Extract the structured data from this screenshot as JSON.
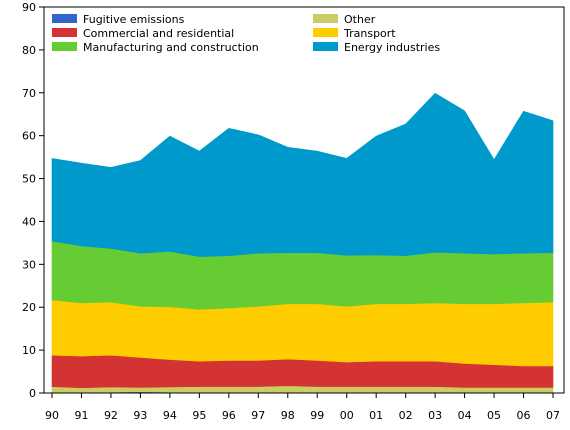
{
  "chart_data": {
    "type": "area",
    "stacked": true,
    "categories": [
      "90",
      "91",
      "92",
      "93",
      "94",
      "95",
      "96",
      "97",
      "98",
      "99",
      "00",
      "01",
      "02",
      "03",
      "04",
      "05",
      "06",
      "07"
    ],
    "ylim": [
      0,
      90
    ],
    "yticks": [
      0,
      10,
      20,
      30,
      40,
      50,
      60,
      70,
      80,
      90
    ],
    "grid": false,
    "legend_position": "top",
    "series": [
      {
        "name": "Fugitive emissions",
        "color": "#3366cc",
        "values": [
          0.2,
          0.2,
          0.2,
          0.3,
          0.2,
          0.2,
          0.2,
          0.2,
          0.2,
          0.2,
          0.2,
          0.2,
          0.2,
          0.2,
          0.2,
          0.2,
          0.2,
          0.2
        ]
      },
      {
        "name": "Other",
        "color": "#cccc66",
        "values": [
          1.3,
          1.0,
          1.2,
          1.0,
          1.2,
          1.3,
          1.3,
          1.3,
          1.5,
          1.3,
          1.3,
          1.3,
          1.3,
          1.3,
          1.1,
          1.1,
          1.1,
          1.1
        ]
      },
      {
        "name": "Commercial and residential",
        "color": "#d43333",
        "values": [
          7.3,
          7.4,
          7.4,
          7.0,
          6.4,
          5.9,
          6.1,
          6.1,
          6.2,
          6.1,
          5.7,
          5.9,
          5.9,
          5.9,
          5.6,
          5.3,
          5.0,
          5.0
        ]
      },
      {
        "name": "Transport",
        "color": "#ffcc00",
        "values": [
          12.9,
          12.4,
          12.4,
          11.9,
          12.3,
          12.1,
          12.2,
          12.6,
          12.9,
          13.2,
          13.0,
          13.4,
          13.4,
          13.6,
          13.9,
          14.2,
          14.7,
          14.9
        ]
      },
      {
        "name": "Manufacturing and construction",
        "color": "#66cc33",
        "values": [
          13.7,
          13.3,
          12.5,
          12.4,
          12.9,
          12.3,
          12.2,
          12.4,
          11.9,
          11.9,
          11.9,
          11.4,
          11.2,
          11.8,
          11.8,
          11.6,
          11.6,
          11.5
        ]
      },
      {
        "name": "Energy industries",
        "color": "#0099cc",
        "values": [
          19.3,
          19.3,
          18.9,
          21.6,
          26.9,
          24.6,
          29.7,
          27.6,
          24.6,
          23.7,
          22.6,
          27.7,
          30.7,
          37.1,
          33.2,
          22.0,
          33.1,
          30.8
        ]
      }
    ],
    "legend_order": [
      "Fugitive emissions",
      "Other",
      "Commercial and residential",
      "Transport",
      "Manufacturing and construction",
      "Energy industries"
    ]
  }
}
